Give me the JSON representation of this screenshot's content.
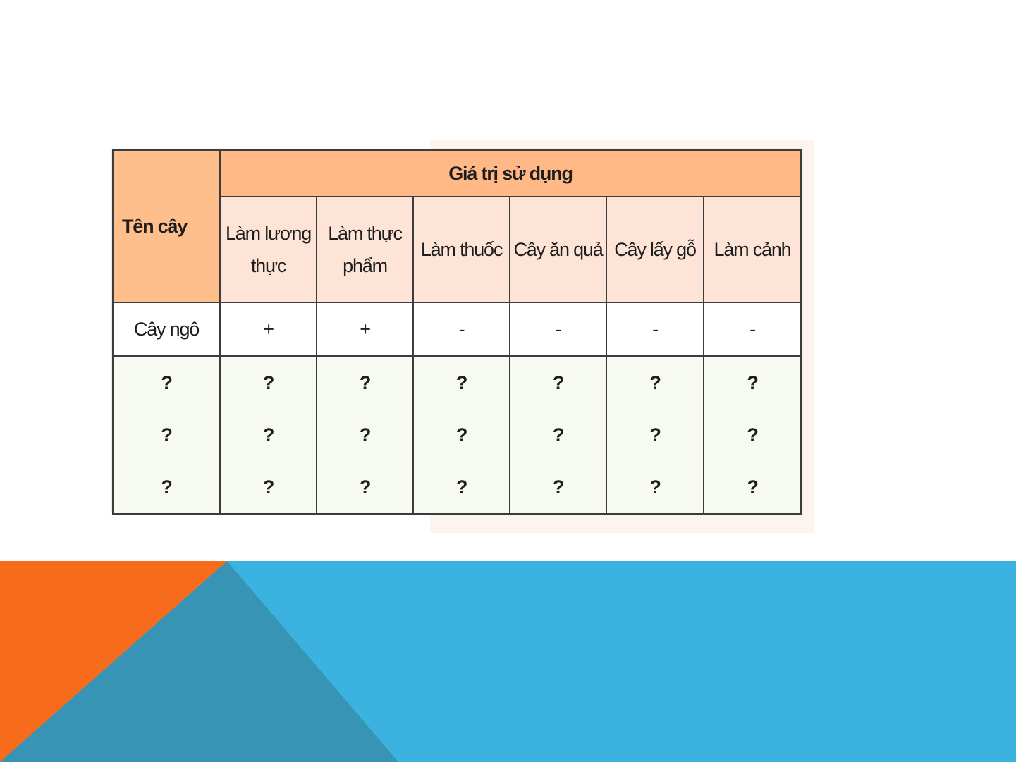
{
  "table": {
    "name_header": "Tên cây",
    "group_header": "Giá trị sử dụng",
    "columns": [
      "Làm lương thực",
      "Làm thực phẩm",
      "Làm thuốc",
      "Cây ăn quả",
      "Cây lấy gỗ",
      "Làm cảnh"
    ],
    "rows": [
      {
        "name": "Cây ngô",
        "cells": [
          "+",
          "+",
          "-",
          "-",
          "-",
          "-"
        ]
      },
      {
        "name": "?",
        "cells": [
          "?",
          "?",
          "?",
          "?",
          "?",
          "?"
        ]
      },
      {
        "name": "?",
        "cells": [
          "?",
          "?",
          "?",
          "?",
          "?",
          "?"
        ]
      },
      {
        "name": "?",
        "cells": [
          "?",
          "?",
          "?",
          "?",
          "?",
          "?"
        ]
      }
    ]
  },
  "colors": {
    "orange": "#f76b1c",
    "blue": "#3bb2df",
    "teal": "#3794b4",
    "header_orange": "#ffb886",
    "header_light": "#fde4d6"
  }
}
